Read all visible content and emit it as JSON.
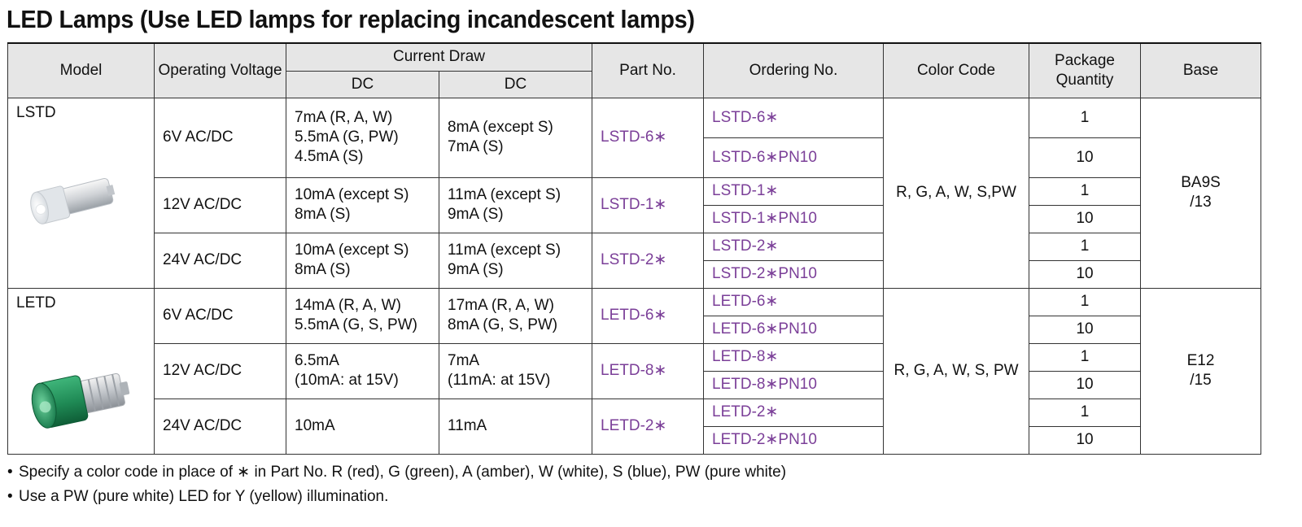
{
  "title": "LED Lamps (Use LED lamps for replacing incandescent lamps)",
  "headers": {
    "model": "Model",
    "operating_voltage": "Operating Voltage",
    "current_draw": "Current Draw",
    "dc1": "DC",
    "dc2": "DC",
    "part_no": "Part No.",
    "ordering_no": "Ordering No.",
    "color_code": "Color Code",
    "package_quantity": "Package Quantity",
    "base": "Base"
  },
  "groups": [
    {
      "model": "LSTD",
      "color_code": "R, G, A, W, S,PW",
      "base_line1": "BA9S",
      "base_line2": "/13",
      "rows": [
        {
          "voltage": "6V AC/DC",
          "dc1": [
            "7mA (R, A, W)",
            "5.5mA (G, PW)",
            "4.5mA (S)"
          ],
          "dc2": [
            "8mA (except S)",
            "7mA (S)"
          ],
          "part_no": "LSTD-6∗",
          "orders": [
            {
              "no": "LSTD-6∗",
              "qty": "1"
            },
            {
              "no": "LSTD-6∗PN10",
              "qty": "10"
            }
          ]
        },
        {
          "voltage": "12V AC/DC",
          "dc1": [
            "10mA (except S)",
            "8mA (S)"
          ],
          "dc2": [
            "11mA (except S)",
            "9mA (S)"
          ],
          "part_no": "LSTD-1∗",
          "orders": [
            {
              "no": "LSTD-1∗",
              "qty": "1"
            },
            {
              "no": "LSTD-1∗PN10",
              "qty": "10"
            }
          ]
        },
        {
          "voltage": "24V AC/DC",
          "dc1": [
            "10mA (except S)",
            "8mA (S)"
          ],
          "dc2": [
            "11mA (except S)",
            "9mA (S)"
          ],
          "part_no": "LSTD-2∗",
          "orders": [
            {
              "no": "LSTD-2∗",
              "qty": "1"
            },
            {
              "no": "LSTD-2∗PN10",
              "qty": "10"
            }
          ]
        }
      ]
    },
    {
      "model": "LETD",
      "color_code": "R, G, A, W, S, PW",
      "base_line1": "E12",
      "base_line2": "/15",
      "rows": [
        {
          "voltage": "6V AC/DC",
          "dc1": [
            "14mA (R, A, W)",
            "5.5mA (G, S, PW)"
          ],
          "dc2": [
            "17mA (R, A, W)",
            "8mA (G, S, PW)"
          ],
          "part_no": "LETD-6∗",
          "orders": [
            {
              "no": "LETD-6∗",
              "qty": "1"
            },
            {
              "no": "LETD-6∗PN10",
              "qty": "10"
            }
          ]
        },
        {
          "voltage": "12V AC/DC",
          "dc1": [
            "6.5mA",
            "(10mA: at 15V)"
          ],
          "dc2": [
            "7mA",
            "(11mA: at 15V)"
          ],
          "part_no": "LETD-8∗",
          "orders": [
            {
              "no": "LETD-8∗",
              "qty": "1"
            },
            {
              "no": "LETD-8∗PN10",
              "qty": "10"
            }
          ]
        },
        {
          "voltage": "24V AC/DC",
          "dc1": [
            "10mA"
          ],
          "dc2": [
            "11mA"
          ],
          "part_no": "LETD-2∗",
          "orders": [
            {
              "no": "LETD-2∗",
              "qty": "1"
            },
            {
              "no": "LETD-2∗PN10",
              "qty": "10"
            }
          ]
        }
      ]
    }
  ],
  "notes": [
    "Specify a color code in place of ∗ in Part No. R (red), G (green), A (amber), W (white), S (blue), PW (pure white)",
    "Use a PW (pure white) LED for Y (yellow) illumination."
  ],
  "colors": {
    "link_purple": "#7b3f98",
    "header_gray": "#e6e6e6",
    "lamp_white": "#e9ecef",
    "lamp_green": "#1f8a55"
  },
  "icons": {
    "lstd": "white-ba9s-led-lamp-image",
    "letd": "green-e12-led-lamp-image"
  }
}
